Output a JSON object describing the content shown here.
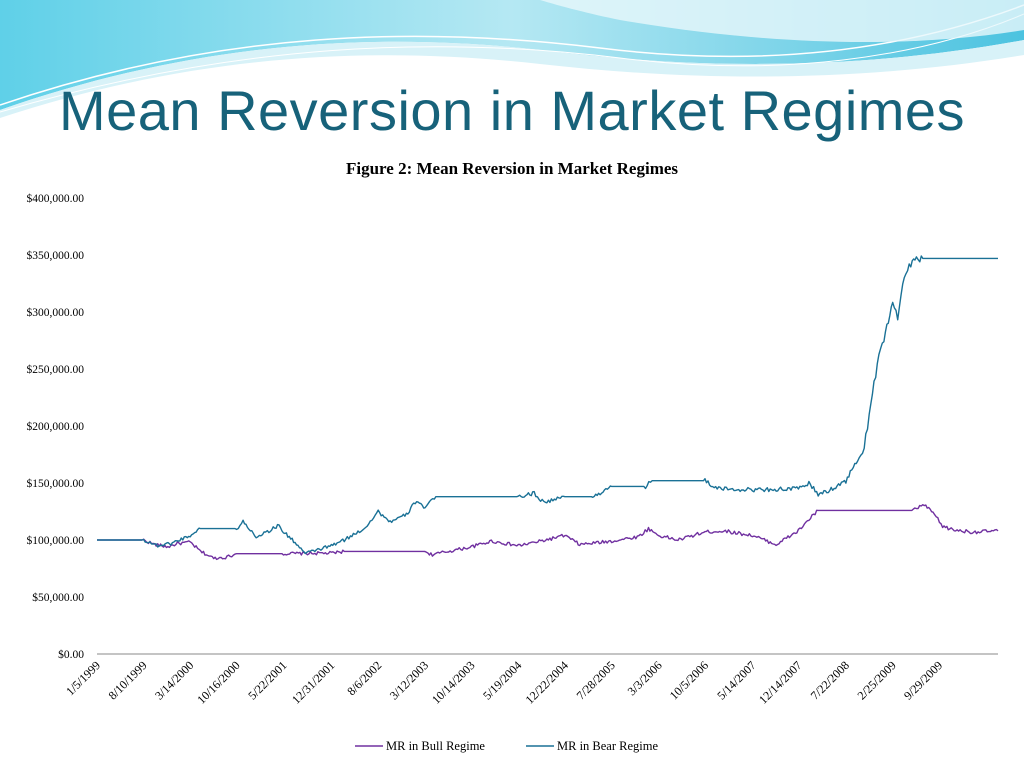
{
  "slide": {
    "title": "Mean Reversion in Market Regimes"
  },
  "chart_data": {
    "type": "line",
    "title": "Figure 2: Mean Reversion in Market Regimes",
    "xlabel": "",
    "ylabel": "",
    "y_tick_labels": [
      "$0.00",
      "$50,000.00",
      "$100,000.00",
      "$150,000.00",
      "$200,000.00",
      "$250,000.00",
      "$300,000.00",
      "$350,000.00",
      "$400,000.00"
    ],
    "ylim": [
      0,
      400000
    ],
    "x_tick_labels": [
      "1/5/1999",
      "8/10/1999",
      "3/14/2000",
      "10/16/2000",
      "5/22/2001",
      "12/31/2001",
      "8/6/2002",
      "3/12/2003",
      "10/14/2003",
      "5/19/2004",
      "12/22/2004",
      "7/28/2005",
      "3/3/2006",
      "10/5/2006",
      "5/14/2007",
      "12/14/2007",
      "7/22/2008",
      "2/25/2009",
      "9/29/2009"
    ],
    "x_date_range": [
      "1/5/1999",
      "6/30/2010"
    ],
    "grid": false,
    "legend_position": "bottom",
    "series": [
      {
        "name": "MR in Bull Regime",
        "color": "#7030a0",
        "points": [
          [
            "1999-01-05",
            100000
          ],
          [
            "1999-08-10",
            100000
          ],
          [
            "1999-10-01",
            96000
          ],
          [
            "1999-12-01",
            94000
          ],
          [
            "2000-01-15",
            97000
          ],
          [
            "2000-03-14",
            98000
          ],
          [
            "2000-05-01",
            90000
          ],
          [
            "2000-07-01",
            84000
          ],
          [
            "2000-09-01",
            85000
          ],
          [
            "2000-10-16",
            88000
          ],
          [
            "2001-05-22",
            88000
          ],
          [
            "2001-12-31",
            88500
          ],
          [
            "2002-03-01",
            90000
          ],
          [
            "2002-08-06",
            90000
          ],
          [
            "2003-03-12",
            90000
          ],
          [
            "2003-04-15",
            87000
          ],
          [
            "2003-06-01",
            89000
          ],
          [
            "2003-10-14",
            94000
          ],
          [
            "2004-01-15",
            99000
          ],
          [
            "2004-05-19",
            95000
          ],
          [
            "2004-09-01",
            99000
          ],
          [
            "2004-12-22",
            104000
          ],
          [
            "2005-03-01",
            96000
          ],
          [
            "2005-07-28",
            99000
          ],
          [
            "2005-12-01",
            103000
          ],
          [
            "2006-01-15",
            110000
          ],
          [
            "2006-03-03",
            104000
          ],
          [
            "2006-06-01",
            100000
          ],
          [
            "2006-10-05",
            107000
          ],
          [
            "2007-01-01",
            108000
          ],
          [
            "2007-05-14",
            104000
          ],
          [
            "2007-09-01",
            96000
          ],
          [
            "2007-12-14",
            108000
          ],
          [
            "2008-02-01",
            118000
          ],
          [
            "2008-03-15",
            126000
          ],
          [
            "2008-07-22",
            126000
          ],
          [
            "2009-02-25",
            126000
          ],
          [
            "2009-06-01",
            126000
          ],
          [
            "2009-07-15",
            131000
          ],
          [
            "2009-09-01",
            124000
          ],
          [
            "2009-10-15",
            112000
          ],
          [
            "2009-12-01",
            109000
          ],
          [
            "2010-03-01",
            107000
          ],
          [
            "2010-06-30",
            108000
          ]
        ]
      },
      {
        "name": "MR in Bear Regime",
        "color": "#1a7196",
        "points": [
          [
            "1999-01-05",
            100000
          ],
          [
            "1999-08-10",
            100000
          ],
          [
            "1999-10-15",
            95000
          ],
          [
            "1999-12-15",
            97000
          ],
          [
            "2000-03-14",
            104000
          ],
          [
            "2000-05-01",
            110000
          ],
          [
            "2000-10-16",
            110000
          ],
          [
            "2000-11-15",
            116000
          ],
          [
            "2001-01-15",
            103000
          ],
          [
            "2001-03-15",
            108000
          ],
          [
            "2001-05-01",
            113000
          ],
          [
            "2001-05-22",
            107000
          ],
          [
            "2001-07-15",
            98000
          ],
          [
            "2001-09-01",
            88000
          ],
          [
            "2001-10-01",
            90000
          ],
          [
            "2001-12-31",
            95000
          ],
          [
            "2002-03-01",
            100000
          ],
          [
            "2002-06-01",
            110000
          ],
          [
            "2002-08-06",
            125000
          ],
          [
            "2002-10-01",
            116000
          ],
          [
            "2002-12-15",
            122000
          ],
          [
            "2003-02-01",
            135000
          ],
          [
            "2003-03-12",
            128000
          ],
          [
            "2003-05-01",
            138000
          ],
          [
            "2003-10-14",
            138000
          ],
          [
            "2004-05-19",
            138000
          ],
          [
            "2004-08-01",
            141000
          ],
          [
            "2004-09-15",
            133000
          ],
          [
            "2004-12-22",
            138000
          ],
          [
            "2005-05-01",
            138000
          ],
          [
            "2005-07-28",
            147000
          ],
          [
            "2006-01-01",
            147000
          ],
          [
            "2006-02-01",
            152000
          ],
          [
            "2006-03-03",
            152000
          ],
          [
            "2006-10-05",
            152000
          ],
          [
            "2006-12-01",
            145000
          ],
          [
            "2007-05-14",
            144000
          ],
          [
            "2007-12-14",
            145000
          ],
          [
            "2008-02-01",
            150000
          ],
          [
            "2008-03-15",
            140000
          ],
          [
            "2008-05-01",
            143000
          ],
          [
            "2008-07-22",
            152000
          ],
          [
            "2008-09-15",
            170000
          ],
          [
            "2008-10-15",
            180000
          ],
          [
            "2008-11-15",
            220000
          ],
          [
            "2008-12-15",
            255000
          ],
          [
            "2009-01-15",
            275000
          ],
          [
            "2009-02-25",
            310000
          ],
          [
            "2009-03-20",
            295000
          ],
          [
            "2009-04-20",
            330000
          ],
          [
            "2009-05-20",
            342000
          ],
          [
            "2009-06-15",
            350000
          ],
          [
            "2009-07-01",
            345000
          ],
          [
            "2009-07-15",
            347000
          ],
          [
            "2010-06-30",
            347000
          ]
        ]
      }
    ]
  }
}
